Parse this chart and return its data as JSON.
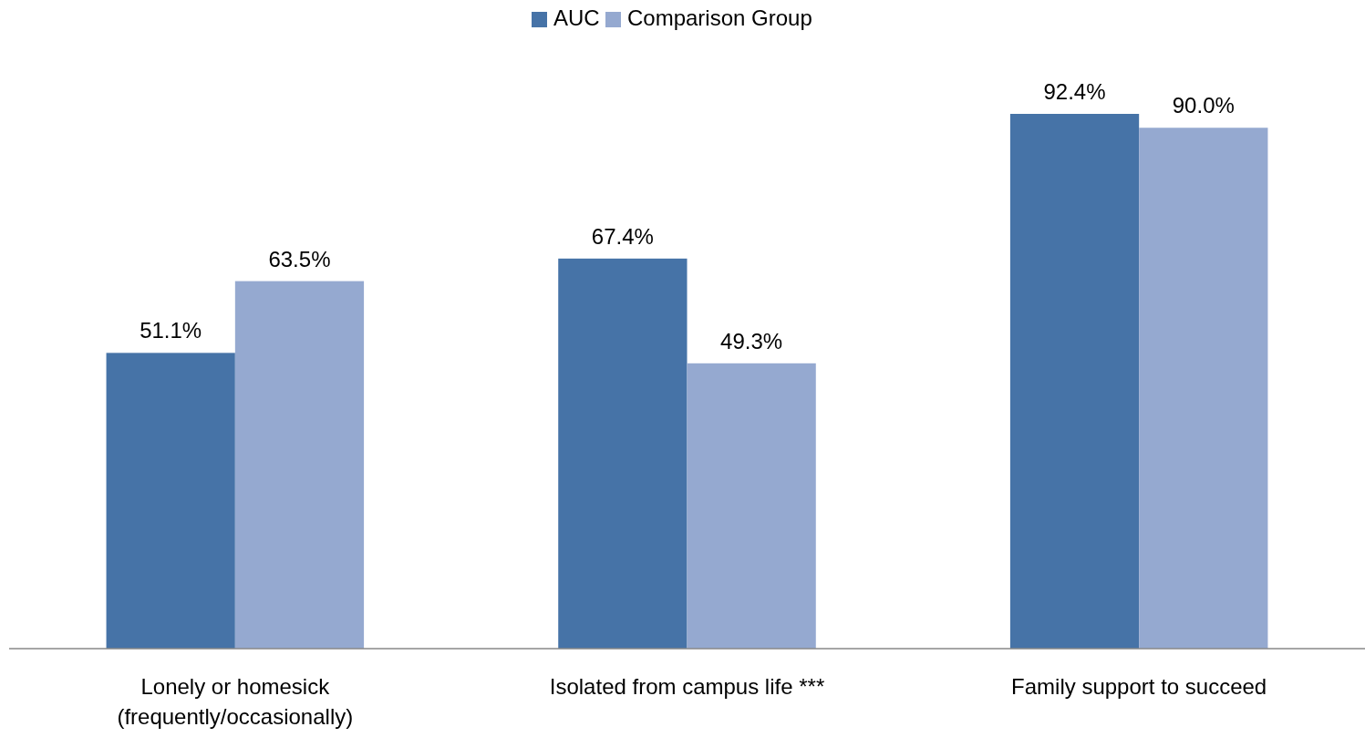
{
  "chart_data": {
    "type": "bar",
    "categories": [
      "Lonely or homesick (frequently/occasionally)",
      "Isolated from campus life ***",
      "Family support to succeed"
    ],
    "series": [
      {
        "name": "AUC",
        "color": "#4673a7",
        "values": [
          51.1,
          67.4,
          92.4
        ],
        "value_labels": [
          "51.1%",
          "67.4%",
          "92.4%"
        ]
      },
      {
        "name": "Comparison Group",
        "color": "#95a9d0",
        "values": [
          63.5,
          49.3,
          90.0
        ],
        "value_labels": [
          "63.5%",
          "49.3%",
          "90.0%"
        ]
      }
    ],
    "legend": "top"
  }
}
